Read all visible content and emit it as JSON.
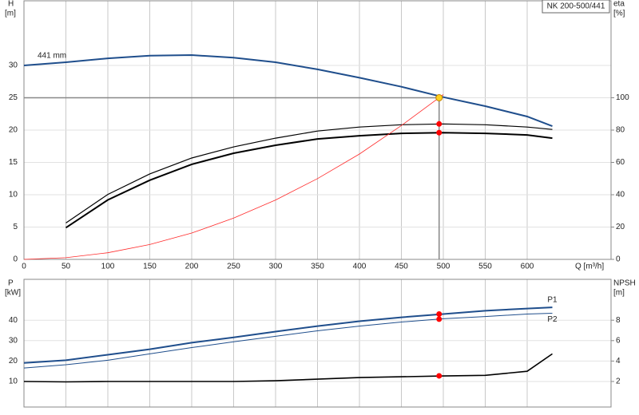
{
  "chart_data": [
    {
      "type": "line",
      "title": "NK 200-500/441",
      "y_label": "H",
      "y_unit": "[m]",
      "y2_label": "eta",
      "y2_unit": "[%]",
      "x_label": "Q [m³/h]",
      "x": [
        0,
        50,
        100,
        150,
        200,
        250,
        300,
        350,
        400,
        450,
        500,
        550,
        600,
        630
      ],
      "xlim": [
        0,
        700
      ],
      "xticks": [
        0,
        50,
        100,
        150,
        200,
        250,
        300,
        350,
        400,
        450,
        500,
        550,
        600
      ],
      "ylim": [
        0,
        40
      ],
      "yticks": [
        0,
        5,
        10,
        15,
        20,
        25,
        30
      ],
      "y2lim": [
        0,
        160
      ],
      "y2ticks": [
        0,
        20,
        40,
        60,
        80,
        100
      ],
      "grid": true,
      "xticklabels": true,
      "series": [
        {
          "name": "441 mm",
          "color": "#1f4e8c",
          "line_width": 2,
          "values": [
            30.0,
            30.5,
            31.1,
            31.5,
            31.6,
            31.2,
            30.5,
            29.4,
            28.1,
            26.7,
            25.1,
            23.7,
            22.1,
            20.6
          ]
        },
        {
          "color": "#000000",
          "line_width": 1.2,
          "axis": "y2",
          "values": [
            null,
            22.5,
            40.2,
            52.9,
            62.7,
            69.6,
            75.0,
            79.4,
            81.9,
            83.3,
            83.8,
            83.3,
            81.9,
            80.4
          ]
        },
        {
          "color": "#000000",
          "line_width": 2,
          "axis": "y2",
          "values": [
            null,
            19.6,
            36.8,
            49.0,
            58.8,
            65.7,
            70.6,
            74.5,
            76.5,
            78.0,
            78.4,
            78.0,
            77.0,
            75.0
          ]
        },
        {
          "color": "#ff2a2a",
          "line_width": 0.8,
          "values": [
            0,
            0.26,
            1.02,
            2.3,
            4.08,
            6.38,
            9.18,
            12.5,
            16.3,
            20.7,
            25.5,
            null,
            null,
            null
          ]
        }
      ],
      "duty_point": {
        "x": 495,
        "y": 25,
        "y2": [
          83.8,
          78.4
        ]
      }
    },
    {
      "type": "line",
      "y_label": "P",
      "y_unit": "[kW]",
      "y2_label": "NPSH",
      "y2_unit": "[m]",
      "x": [
        0,
        50,
        100,
        150,
        200,
        250,
        300,
        350,
        400,
        450,
        500,
        550,
        600,
        630
      ],
      "xlim": [
        0,
        700
      ],
      "xticks": [
        0,
        50,
        100,
        150,
        200,
        250,
        300,
        350,
        400,
        450,
        500,
        550,
        600
      ],
      "ylim": [
        -2.5,
        60
      ],
      "yticks": [
        10,
        20,
        30,
        40
      ],
      "y2lim": [
        -0.5,
        12
      ],
      "y2ticks": [
        2,
        4,
        6,
        8
      ],
      "grid": true,
      "xticklabels": false,
      "series": [
        {
          "name": "P1",
          "color": "#1f4e8c",
          "line_width": 2,
          "values": [
            19.1,
            20.4,
            23.1,
            25.8,
            29.0,
            31.6,
            34.4,
            37.1,
            39.5,
            41.4,
            43.0,
            44.6,
            45.7,
            46.3
          ]
        },
        {
          "name": "P2",
          "color": "#1f4e8c",
          "line_width": 1,
          "values": [
            16.6,
            18.2,
            20.4,
            23.5,
            26.6,
            29.4,
            32.1,
            34.8,
            37.1,
            39.1,
            40.7,
            41.8,
            43.0,
            43.4
          ]
        },
        {
          "color": "#000000",
          "line_width": 1.6,
          "axis": "y2",
          "values": [
            2.0,
            1.96,
            2.0,
            2.0,
            2.0,
            2.0,
            2.07,
            2.23,
            2.38,
            2.46,
            2.54,
            2.6,
            3.0,
            4.7
          ]
        }
      ],
      "duty_point": {
        "x": 495,
        "y": [
          43.0,
          40.5
        ],
        "y2": [
          2.55
        ]
      }
    }
  ]
}
